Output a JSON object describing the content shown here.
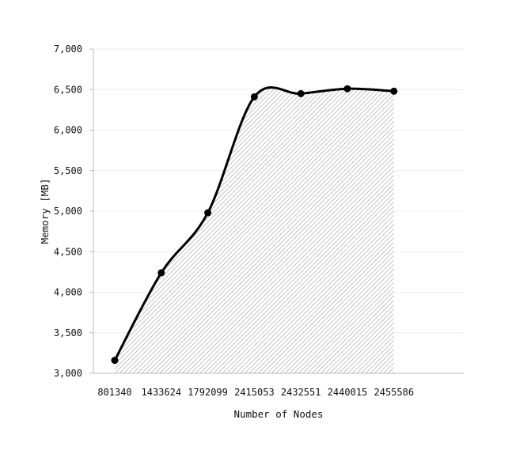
{
  "chart_data": {
    "type": "area",
    "title": "",
    "xlabel": "Number of Nodes",
    "ylabel": "Memory [MB]",
    "categories": [
      "801340",
      "1433624",
      "1792099",
      "2415053",
      "2432551",
      "2440015",
      "2455586"
    ],
    "series": [
      {
        "values": [
          3160,
          4240,
          4980,
          6410,
          6450,
          6510,
          6480
        ]
      }
    ],
    "ylim": [
      3000,
      7000
    ],
    "yticks": [
      3000,
      3500,
      4000,
      4500,
      5000,
      5500,
      6000,
      6500,
      7000
    ],
    "ytick_labels": [
      "3,000",
      "3,500",
      "4,000",
      "4,500",
      "5,000",
      "5,500",
      "6,000",
      "6,500",
      "7,000"
    ],
    "grid": true,
    "area_fill": "hatched",
    "colors": {
      "line": "#000000",
      "hatch": "#bfbfbf",
      "grid": "#eeeeee",
      "axis": "#bbbbbb"
    }
  }
}
